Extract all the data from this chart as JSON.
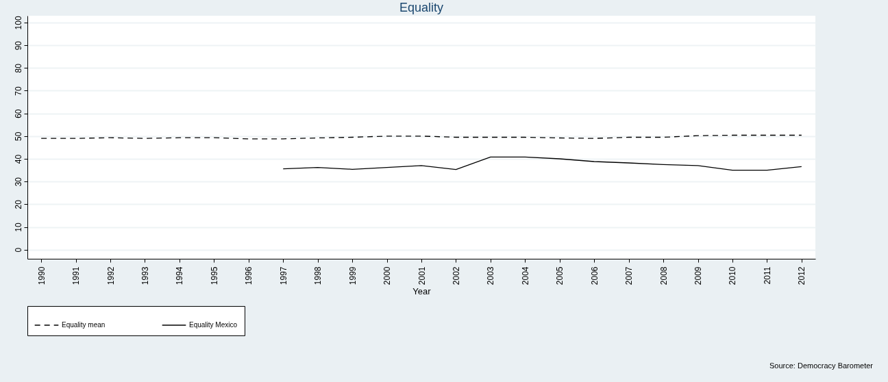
{
  "chart_data": {
    "type": "line",
    "title": "Equality",
    "xlabel": "Year",
    "categories": [
      "1990",
      "1991",
      "1992",
      "1993",
      "1994",
      "1995",
      "1996",
      "1997",
      "1998",
      "1999",
      "2000",
      "2001",
      "2002",
      "2003",
      "2004",
      "2005",
      "2006",
      "2007",
      "2008",
      "2009",
      "2010",
      "2011",
      "2012"
    ],
    "series": [
      {
        "name": "Equality mean",
        "color": "#000000",
        "line_style": "dashed",
        "values": [
          49,
          49,
          49.3,
          49,
          49.3,
          49.3,
          48.8,
          48.8,
          49.2,
          49.5,
          50,
          50,
          49.5,
          49.5,
          49.5,
          49.2,
          49,
          49.5,
          49.5,
          50.2,
          50.4,
          50.4,
          50.4
        ]
      },
      {
        "name": "Equality Mexico",
        "color": "#000000",
        "line_style": "solid",
        "values": [
          null,
          null,
          null,
          null,
          null,
          null,
          null,
          35.6,
          36.2,
          35.4,
          36.2,
          37,
          35.3,
          40.8,
          40.8,
          40,
          38.8,
          38.2,
          37.5,
          37,
          35,
          35,
          36.6
        ]
      }
    ],
    "ylim": [
      -4,
      103
    ],
    "yticks": [
      0,
      10,
      20,
      30,
      40,
      50,
      60,
      70,
      80,
      90,
      100
    ],
    "grid": "y",
    "legend": "bottom",
    "marker": "none",
    "annotations": [
      "Source: Democracy Barometer"
    ]
  }
}
